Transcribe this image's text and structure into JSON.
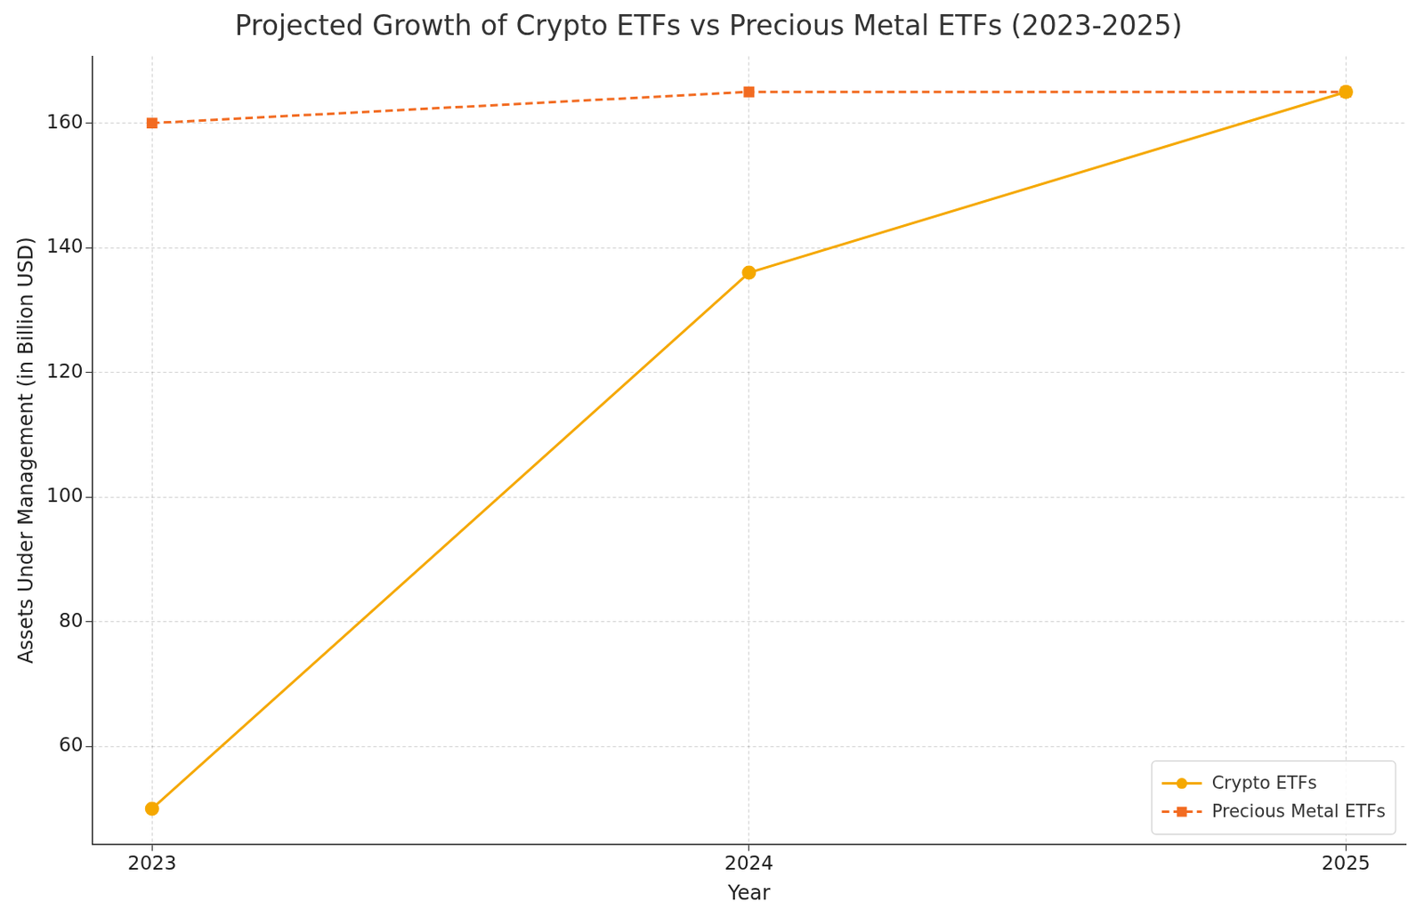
{
  "chart_data": {
    "type": "line",
    "title": "Projected Growth of Crypto ETFs vs Precious Metal ETFs (2023-2025)",
    "x_label": "Year",
    "y_label": "Assets Under Management (in Billion USD)",
    "x": [
      2023,
      2024,
      2025
    ],
    "xlim": [
      2022.9,
      2025.1
    ],
    "xticks": [
      2023,
      2024,
      2025
    ],
    "ylim": [
      44.3,
      170.7
    ],
    "yticks": [
      60,
      80,
      100,
      120,
      140,
      160
    ],
    "grid": true,
    "legend": "lower right",
    "series": [
      {
        "name": "Crypto ETFs",
        "color": "#f5a800",
        "marker": "circle",
        "line_style": "solid",
        "values": [
          50,
          136,
          165
        ]
      },
      {
        "name": "Precious Metal ETFs",
        "color": "#f26b21",
        "marker": "square",
        "line_style": "dashed",
        "values": [
          160,
          165,
          165
        ]
      }
    ]
  }
}
